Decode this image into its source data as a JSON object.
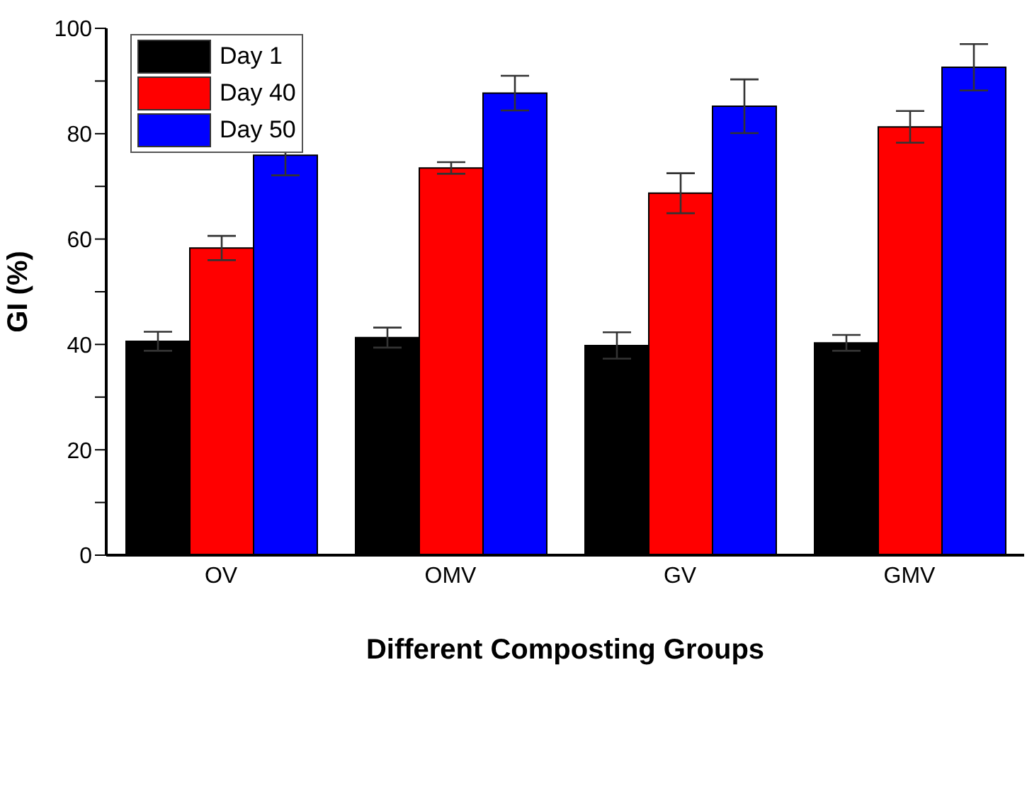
{
  "chart_data": {
    "type": "bar",
    "xlabel": "Different Composting Groups",
    "ylabel": "GI (%)",
    "categories": [
      "OV",
      "OMV",
      "GV",
      "GMV"
    ],
    "series": [
      {
        "name": "Day 1",
        "color": "#000000",
        "values": [
          40.6,
          41.3,
          39.8,
          40.3
        ],
        "errors": [
          1.8,
          1.9,
          2.5,
          1.5
        ]
      },
      {
        "name": "Day 40",
        "color": "#ff0000",
        "values": [
          58.3,
          73.5,
          68.7,
          81.3
        ],
        "errors": [
          2.3,
          1.1,
          3.8,
          3.0
        ]
      },
      {
        "name": "Day 50",
        "color": "#0000ff",
        "values": [
          75.9,
          87.7,
          85.2,
          92.6
        ],
        "errors": [
          3.8,
          3.3,
          5.1,
          4.4
        ]
      }
    ],
    "ylim": [
      0,
      100
    ],
    "yticks": [
      0,
      {
        "value": 10,
        "label": null
      },
      20,
      {
        "value": 30,
        "label": null
      },
      40,
      {
        "value": 50,
        "label": null
      },
      60,
      {
        "value": 70,
        "label": null
      },
      80,
      {
        "value": 90,
        "label": null
      },
      100
    ],
    "legend": "top left",
    "grid": false
  }
}
